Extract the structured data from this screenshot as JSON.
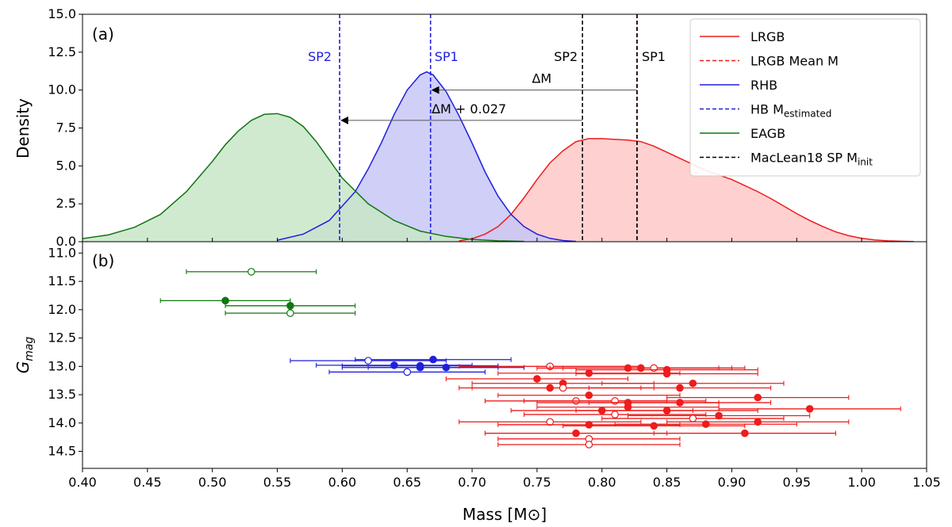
{
  "chart_data": [
    {
      "panel": "a",
      "type": "area",
      "panel_label": "(a)",
      "xlabel": "Mass [M⊙]",
      "ylabel": "Density",
      "xlim": [
        0.4,
        1.05
      ],
      "ylim": [
        0.0,
        15.0
      ],
      "xticks": [
        0.4,
        0.45,
        0.5,
        0.55,
        0.6,
        0.65,
        0.7,
        0.75,
        0.8,
        0.85,
        0.9,
        0.95,
        1.0,
        1.05
      ],
      "xtick_labels": [
        "0.40",
        "0.45",
        "0.50",
        "0.55",
        "0.60",
        "0.65",
        "0.70",
        "0.75",
        "0.80",
        "0.85",
        "0.90",
        "0.95",
        "1.00",
        "1.05"
      ],
      "yticks": [
        0.0,
        2.5,
        5.0,
        7.5,
        10.0,
        12.5,
        15.0
      ],
      "ytick_labels": [
        "0.0",
        "2.5",
        "5.0",
        "7.5",
        "10.0",
        "12.5",
        "15.0"
      ],
      "series": [
        {
          "name": "LRGB",
          "color": "#ee1c1c",
          "fill": "#ffc8c8",
          "x": [
            0.69,
            0.7,
            0.71,
            0.72,
            0.73,
            0.74,
            0.75,
            0.76,
            0.77,
            0.78,
            0.79,
            0.8,
            0.81,
            0.82,
            0.83,
            0.84,
            0.85,
            0.86,
            0.87,
            0.88,
            0.89,
            0.9,
            0.91,
            0.92,
            0.93,
            0.94,
            0.95,
            0.96,
            0.97,
            0.98,
            0.99,
            1.0,
            1.01,
            1.02,
            1.03,
            1.04
          ],
          "y": [
            0.05,
            0.2,
            0.5,
            1.0,
            1.8,
            2.9,
            4.1,
            5.2,
            6.0,
            6.6,
            6.8,
            6.8,
            6.75,
            6.7,
            6.6,
            6.3,
            5.9,
            5.5,
            5.1,
            4.7,
            4.4,
            4.1,
            3.7,
            3.3,
            2.85,
            2.35,
            1.85,
            1.4,
            1.0,
            0.65,
            0.4,
            0.22,
            0.12,
            0.06,
            0.03,
            0.01
          ]
        },
        {
          "name": "RHB",
          "color": "#1f1fdd",
          "fill": "#c7c7f7",
          "x": [
            0.55,
            0.57,
            0.59,
            0.61,
            0.62,
            0.63,
            0.64,
            0.65,
            0.66,
            0.665,
            0.67,
            0.68,
            0.69,
            0.7,
            0.71,
            0.72,
            0.73,
            0.74,
            0.75,
            0.76,
            0.77,
            0.78
          ],
          "y": [
            0.1,
            0.5,
            1.4,
            3.3,
            4.8,
            6.5,
            8.4,
            10.0,
            11.0,
            11.2,
            11.0,
            9.9,
            8.3,
            6.5,
            4.6,
            3.0,
            1.8,
            1.0,
            0.5,
            0.22,
            0.08,
            0.02
          ]
        },
        {
          "name": "EAGB",
          "color": "#117711",
          "fill": "#c8e6c8",
          "x": [
            0.4,
            0.42,
            0.44,
            0.46,
            0.48,
            0.5,
            0.51,
            0.52,
            0.53,
            0.54,
            0.55,
            0.56,
            0.57,
            0.58,
            0.59,
            0.6,
            0.62,
            0.64,
            0.66,
            0.68,
            0.7,
            0.72,
            0.74
          ],
          "y": [
            0.2,
            0.45,
            0.95,
            1.8,
            3.3,
            5.3,
            6.4,
            7.3,
            8.0,
            8.4,
            8.45,
            8.2,
            7.6,
            6.6,
            5.4,
            4.2,
            2.5,
            1.4,
            0.7,
            0.35,
            0.15,
            0.06,
            0.02
          ]
        }
      ],
      "vlines": [
        {
          "name": "LRGB Mean M",
          "x": 0.827,
          "color": "#ee1c1c",
          "style": "dashed"
        },
        {
          "name": "SP1",
          "x": 0.827,
          "color": "#000000",
          "style": "dashed",
          "label": "SP1"
        },
        {
          "name": "SP2",
          "x": 0.785,
          "color": "#000000",
          "style": "dashed",
          "label": "SP2"
        },
        {
          "name": "HB SP1",
          "x": 0.668,
          "color": "#1f1fdd",
          "style": "dashed",
          "label": "SP1"
        },
        {
          "name": "HB SP2",
          "x": 0.598,
          "color": "#1f1fdd",
          "style": "dashed",
          "label": "SP2"
        }
      ],
      "arrows": [
        {
          "label": "ΔM",
          "x_from": 0.827,
          "x_to": 0.668,
          "y": 10.0
        },
        {
          "label": "ΔM + 0.027",
          "x_from": 0.785,
          "x_to": 0.598,
          "y": 8.0
        }
      ],
      "legend": {
        "placement": "top-right",
        "entries": [
          {
            "label": "LRGB",
            "color": "#ee1c1c",
            "style": "solid"
          },
          {
            "label": "LRGB Mean M",
            "color": "#ee1c1c",
            "style": "dashed"
          },
          {
            "label": "RHB",
            "color": "#1f1fdd",
            "style": "solid"
          },
          {
            "label": "HB M",
            "sub": "estimated",
            "color": "#1f1fdd",
            "style": "dashed"
          },
          {
            "label": "EAGB",
            "color": "#117711",
            "style": "solid"
          },
          {
            "label": "MacLean18 SP M",
            "sub": "init",
            "color": "#000000",
            "style": "dashed"
          }
        ]
      }
    },
    {
      "panel": "b",
      "type": "scatter",
      "panel_label": "(b)",
      "xlabel": "Mass [M⊙]",
      "ylabel": "G_mag",
      "xlim": [
        0.4,
        1.05
      ],
      "ylim": [
        14.8,
        10.8
      ],
      "y_inverted": true,
      "yticks": [
        11.0,
        11.5,
        12.0,
        12.5,
        13.0,
        13.5,
        14.0,
        14.5
      ],
      "ytick_labels": [
        "11.0",
        "11.5",
        "12.0",
        "12.5",
        "13.0",
        "13.5",
        "14.0",
        "14.5"
      ],
      "series": [
        {
          "name": "EAGB",
          "color": "#117711",
          "xerr": 0.05,
          "points": [
            {
              "x": 0.53,
              "y": 11.33,
              "filled": false
            },
            {
              "x": 0.51,
              "y": 11.84,
              "filled": true
            },
            {
              "x": 0.56,
              "y": 11.93,
              "filled": true
            },
            {
              "x": 0.56,
              "y": 12.06,
              "filled": false
            }
          ]
        },
        {
          "name": "RHB",
          "color": "#1f1fdd",
          "xerr": 0.06,
          "points": [
            {
              "x": 0.67,
              "y": 12.88,
              "filled": true
            },
            {
              "x": 0.62,
              "y": 12.9,
              "filled": false
            },
            {
              "x": 0.64,
              "y": 12.98,
              "filled": true
            },
            {
              "x": 0.66,
              "y": 12.99,
              "filled": true
            },
            {
              "x": 0.66,
              "y": 13.02,
              "filled": true
            },
            {
              "x": 0.68,
              "y": 13.02,
              "filled": true
            },
            {
              "x": 0.65,
              "y": 13.1,
              "filled": false
            }
          ]
        },
        {
          "name": "LRGB",
          "color": "#ee1c1c",
          "xerr": 0.07,
          "points": [
            {
              "x": 0.76,
              "y": 13.0,
              "filled": false
            },
            {
              "x": 0.82,
              "y": 13.03,
              "filled": true
            },
            {
              "x": 0.83,
              "y": 13.03,
              "filled": true
            },
            {
              "x": 0.84,
              "y": 13.03,
              "filled": false
            },
            {
              "x": 0.85,
              "y": 13.06,
              "filled": true
            },
            {
              "x": 0.79,
              "y": 13.12,
              "filled": true
            },
            {
              "x": 0.85,
              "y": 13.13,
              "filled": true
            },
            {
              "x": 0.75,
              "y": 13.22,
              "filled": true
            },
            {
              "x": 0.77,
              "y": 13.3,
              "filled": true
            },
            {
              "x": 0.87,
              "y": 13.3,
              "filled": true
            },
            {
              "x": 0.76,
              "y": 13.38,
              "filled": true
            },
            {
              "x": 0.77,
              "y": 13.38,
              "filled": false
            },
            {
              "x": 0.86,
              "y": 13.38,
              "filled": true
            },
            {
              "x": 0.79,
              "y": 13.51,
              "filled": true
            },
            {
              "x": 0.92,
              "y": 13.55,
              "filled": true
            },
            {
              "x": 0.78,
              "y": 13.61,
              "filled": false
            },
            {
              "x": 0.81,
              "y": 13.61,
              "filled": false
            },
            {
              "x": 0.82,
              "y": 13.64,
              "filled": true
            },
            {
              "x": 0.86,
              "y": 13.64,
              "filled": true
            },
            {
              "x": 0.82,
              "y": 13.72,
              "filled": true
            },
            {
              "x": 0.8,
              "y": 13.78,
              "filled": true
            },
            {
              "x": 0.85,
              "y": 13.78,
              "filled": true
            },
            {
              "x": 0.96,
              "y": 13.75,
              "filled": true
            },
            {
              "x": 0.81,
              "y": 13.85,
              "filled": false
            },
            {
              "x": 0.89,
              "y": 13.87,
              "filled": true
            },
            {
              "x": 0.87,
              "y": 13.92,
              "filled": false
            },
            {
              "x": 0.76,
              "y": 13.98,
              "filled": false
            },
            {
              "x": 0.79,
              "y": 14.03,
              "filled": true
            },
            {
              "x": 0.84,
              "y": 14.05,
              "filled": true
            },
            {
              "x": 0.88,
              "y": 14.02,
              "filled": true
            },
            {
              "x": 0.92,
              "y": 13.98,
              "filled": true
            },
            {
              "x": 0.78,
              "y": 14.18,
              "filled": true
            },
            {
              "x": 0.91,
              "y": 14.18,
              "filled": true
            },
            {
              "x": 0.79,
              "y": 14.28,
              "filled": false
            },
            {
              "x": 0.79,
              "y": 14.38,
              "filled": false
            }
          ]
        }
      ]
    }
  ]
}
